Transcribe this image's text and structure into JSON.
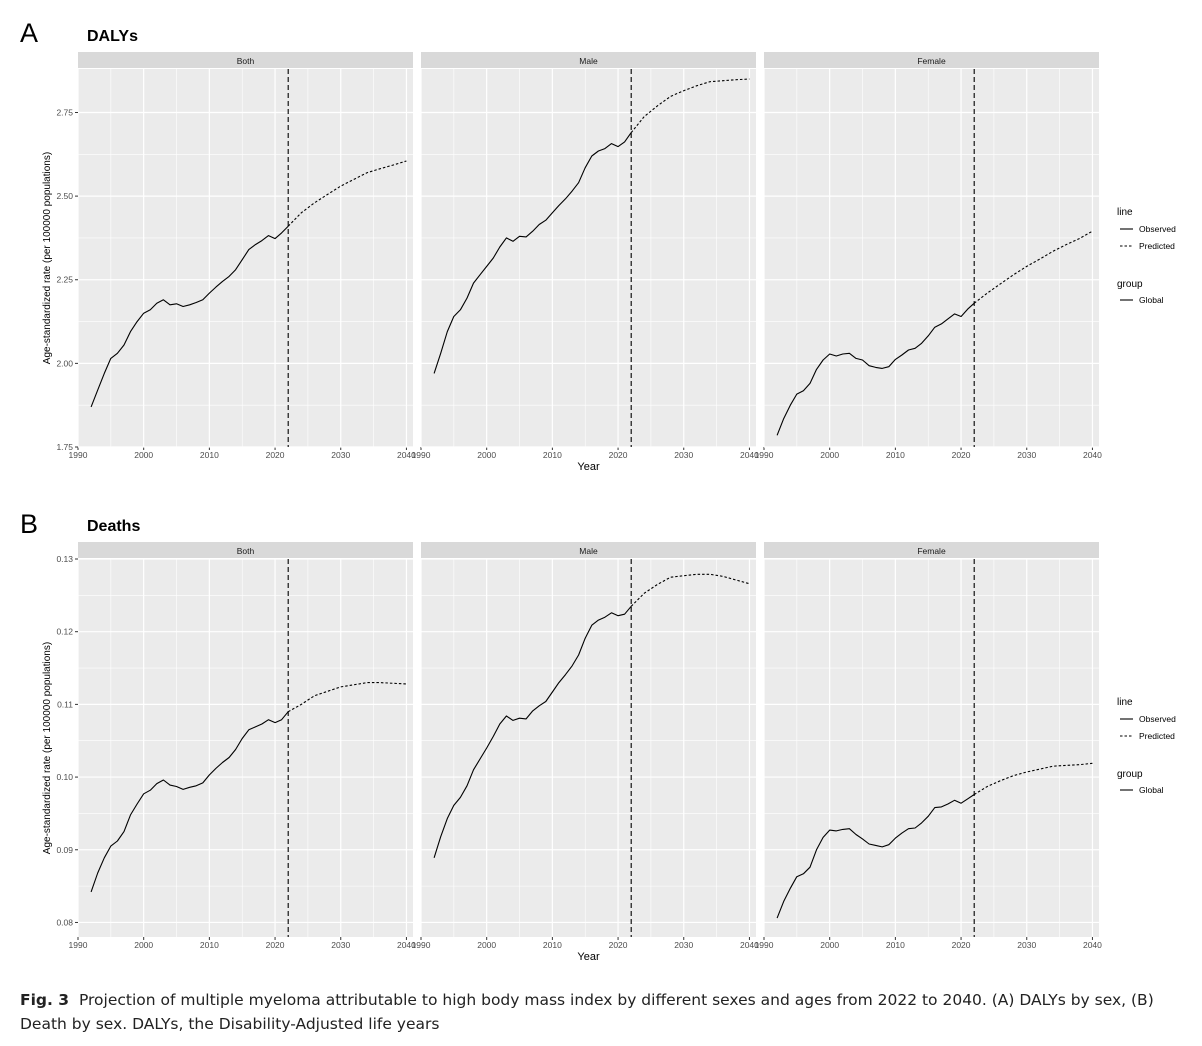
{
  "figure": {
    "caption": {
      "label": "Fig. 3",
      "text": "Projection of multiple myeloma attributable to high body mass index by different sexes and ages from 2022 to 2040. (A) DALYs by sex, (B) Death by sex. DALYs, the Disability-Adjusted life years"
    },
    "colors": {
      "panel_bg": "#ebebeb",
      "strip_bg": "#d9d9d9",
      "grid": "#ffffff",
      "line": "#000000"
    }
  },
  "chart_data": [
    {
      "type": "line",
      "panel_letter": "A",
      "title": "DALYs",
      "xlabel": "Year",
      "ylabel": "Age-standardized rate (per 100000 populations)",
      "facets": [
        "Both",
        "Male",
        "Female"
      ],
      "xlim": [
        1990,
        2041
      ],
      "x_ticks": [
        1990,
        2000,
        2010,
        2020,
        2030,
        2040
      ],
      "ylim": [
        1.75,
        2.88
      ],
      "y_ticks": [
        1.75,
        2.0,
        2.25,
        2.5,
        2.75
      ],
      "y_tick_labels": [
        "1.75",
        "2.00",
        "2.25",
        "2.50",
        "2.75"
      ],
      "vline_x": 2022,
      "legend": {
        "position": "right",
        "line_title": "line",
        "line_entries": [
          "Observed",
          "Predicted"
        ],
        "group_title": "group",
        "group_entries": [
          "Global"
        ]
      },
      "series": {
        "Both": {
          "observed": {
            "x": [
              1992,
              1993,
              1994,
              1995,
              1996,
              1997,
              1998,
              1999,
              2000,
              2001,
              2002,
              2003,
              2004,
              2005,
              2006,
              2007,
              2008,
              2009,
              2010,
              2011,
              2012,
              2013,
              2014,
              2015,
              2016,
              2017,
              2018,
              2019,
              2020,
              2021,
              2022
            ],
            "y": [
              1.87,
              1.92,
              1.97,
              2.015,
              2.03,
              2.055,
              2.095,
              2.125,
              2.15,
              2.16,
              2.18,
              2.19,
              2.175,
              2.178,
              2.17,
              2.175,
              2.182,
              2.19,
              2.21,
              2.228,
              2.245,
              2.26,
              2.28,
              2.31,
              2.34,
              2.355,
              2.367,
              2.382,
              2.373,
              2.39,
              2.41
            ]
          },
          "predicted": {
            "x": [
              2022,
              2024,
              2026,
              2028,
              2030,
              2032,
              2034,
              2036,
              2038,
              2040
            ],
            "y": [
              2.41,
              2.45,
              2.48,
              2.505,
              2.53,
              2.55,
              2.57,
              2.582,
              2.593,
              2.605
            ]
          }
        },
        "Male": {
          "observed": {
            "x": [
              1992,
              1993,
              1994,
              1995,
              1996,
              1997,
              1998,
              1999,
              2000,
              2001,
              2002,
              2003,
              2004,
              2005,
              2006,
              2007,
              2008,
              2009,
              2010,
              2011,
              2012,
              2013,
              2014,
              2015,
              2016,
              2017,
              2018,
              2019,
              2020,
              2021,
              2022
            ],
            "y": [
              1.97,
              2.03,
              2.095,
              2.14,
              2.16,
              2.195,
              2.24,
              2.265,
              2.29,
              2.315,
              2.348,
              2.375,
              2.365,
              2.38,
              2.378,
              2.395,
              2.415,
              2.428,
              2.45,
              2.472,
              2.492,
              2.515,
              2.54,
              2.585,
              2.62,
              2.635,
              2.642,
              2.657,
              2.648,
              2.662,
              2.69
            ]
          },
          "predicted": {
            "x": [
              2022,
              2024,
              2026,
              2028,
              2030,
              2032,
              2034,
              2036,
              2038,
              2040
            ],
            "y": [
              2.69,
              2.738,
              2.77,
              2.798,
              2.815,
              2.83,
              2.842,
              2.845,
              2.848,
              2.85
            ]
          }
        },
        "Female": {
          "observed": {
            "x": [
              1992,
              1993,
              1994,
              1995,
              1996,
              1997,
              1998,
              1999,
              2000,
              2001,
              2002,
              2003,
              2004,
              2005,
              2006,
              2007,
              2008,
              2009,
              2010,
              2011,
              2012,
              2013,
              2014,
              2015,
              2016,
              2017,
              2018,
              2019,
              2020,
              2021,
              2022
            ],
            "y": [
              1.785,
              1.835,
              1.875,
              1.908,
              1.918,
              1.94,
              1.982,
              2.01,
              2.028,
              2.022,
              2.028,
              2.03,
              2.015,
              2.01,
              1.993,
              1.988,
              1.985,
              1.99,
              2.012,
              2.025,
              2.04,
              2.045,
              2.06,
              2.082,
              2.108,
              2.118,
              2.133,
              2.148,
              2.14,
              2.162,
              2.18
            ]
          },
          "predicted": {
            "x": [
              2022,
              2024,
              2026,
              2028,
              2030,
              2032,
              2034,
              2036,
              2038,
              2040
            ],
            "y": [
              2.18,
              2.21,
              2.238,
              2.265,
              2.29,
              2.312,
              2.335,
              2.355,
              2.373,
              2.395
            ]
          }
        }
      }
    },
    {
      "type": "line",
      "panel_letter": "B",
      "title": "Deaths",
      "xlabel": "Year",
      "ylabel": "Age-standardized rate (per 100000 populations)",
      "facets": [
        "Both",
        "Male",
        "Female"
      ],
      "xlim": [
        1990,
        2041
      ],
      "x_ticks": [
        1990,
        2000,
        2010,
        2020,
        2030,
        2040
      ],
      "ylim": [
        0.078,
        0.13
      ],
      "y_ticks": [
        0.08,
        0.09,
        0.1,
        0.11,
        0.12,
        0.13
      ],
      "y_tick_labels": [
        "0.08",
        "0.09",
        "0.10",
        "0.11",
        "0.12",
        "0.13"
      ],
      "vline_x": 2022,
      "legend": {
        "position": "right",
        "line_title": "line",
        "line_entries": [
          "Observed",
          "Predicted"
        ],
        "group_title": "group",
        "group_entries": [
          "Global"
        ]
      },
      "series": {
        "Both": {
          "observed": {
            "x": [
              1992,
              1993,
              1994,
              1995,
              1996,
              1997,
              1998,
              1999,
              2000,
              2001,
              2002,
              2003,
              2004,
              2005,
              2006,
              2007,
              2008,
              2009,
              2010,
              2011,
              2012,
              2013,
              2014,
              2015,
              2016,
              2017,
              2018,
              2019,
              2020,
              2021,
              2022
            ],
            "y": [
              0.0842,
              0.0868,
              0.0889,
              0.0905,
              0.0912,
              0.0925,
              0.0948,
              0.0963,
              0.0977,
              0.0982,
              0.0991,
              0.0996,
              0.0989,
              0.0987,
              0.0983,
              0.0986,
              0.0988,
              0.0992,
              0.1003,
              0.1012,
              0.102,
              0.1027,
              0.1038,
              0.1053,
              0.1065,
              0.1069,
              0.1073,
              0.1079,
              0.1075,
              0.1079,
              0.109
            ]
          },
          "predicted": {
            "x": [
              2022,
              2024,
              2026,
              2028,
              2030,
              2032,
              2034,
              2036,
              2038,
              2040
            ],
            "y": [
              0.109,
              0.11,
              0.1112,
              0.1118,
              0.1124,
              0.1127,
              0.113,
              0.113,
              0.1129,
              0.1128
            ]
          }
        },
        "Male": {
          "observed": {
            "x": [
              1992,
              1993,
              1994,
              1995,
              1996,
              1997,
              1998,
              1999,
              2000,
              2001,
              2002,
              2003,
              2004,
              2005,
              2006,
              2007,
              2008,
              2009,
              2010,
              2011,
              2012,
              2013,
              2014,
              2015,
              2016,
              2017,
              2018,
              2019,
              2020,
              2021,
              2022
            ],
            "y": [
              0.0889,
              0.0918,
              0.0943,
              0.0961,
              0.0972,
              0.0988,
              0.101,
              0.1025,
              0.104,
              0.1056,
              0.1073,
              0.1084,
              0.1078,
              0.1081,
              0.108,
              0.1091,
              0.1098,
              0.1104,
              0.1117,
              0.113,
              0.1141,
              0.1153,
              0.1168,
              0.1191,
              0.1209,
              0.1216,
              0.122,
              0.1226,
              0.1222,
              0.1224,
              0.1235
            ]
          },
          "predicted": {
            "x": [
              2022,
              2024,
              2026,
              2028,
              2030,
              2032,
              2034,
              2036,
              2038,
              2040
            ],
            "y": [
              0.1235,
              0.1253,
              0.1265,
              0.1275,
              0.1277,
              0.1279,
              0.1279,
              0.1276,
              0.1271,
              0.1266
            ]
          }
        },
        "Female": {
          "observed": {
            "x": [
              1992,
              1993,
              1994,
              1995,
              1996,
              1997,
              1998,
              1999,
              2000,
              2001,
              2002,
              2003,
              2004,
              2005,
              2006,
              2007,
              2008,
              2009,
              2010,
              2011,
              2012,
              2013,
              2014,
              2015,
              2016,
              2017,
              2018,
              2019,
              2020,
              2021,
              2022
            ],
            "y": [
              0.0806,
              0.0829,
              0.0847,
              0.0863,
              0.0867,
              0.0876,
              0.09,
              0.0917,
              0.0927,
              0.0926,
              0.0928,
              0.0929,
              0.0921,
              0.0915,
              0.0908,
              0.0906,
              0.0904,
              0.0907,
              0.0916,
              0.0923,
              0.0929,
              0.093,
              0.0937,
              0.0946,
              0.0958,
              0.0959,
              0.0963,
              0.0968,
              0.0964,
              0.097,
              0.0976
            ]
          },
          "predicted": {
            "x": [
              2022,
              2024,
              2026,
              2028,
              2030,
              2032,
              2034,
              2036,
              2038,
              2040
            ],
            "y": [
              0.0976,
              0.0987,
              0.0995,
              0.1002,
              0.1007,
              0.1011,
              0.1015,
              0.1016,
              0.1017,
              0.1019
            ]
          }
        }
      }
    }
  ]
}
